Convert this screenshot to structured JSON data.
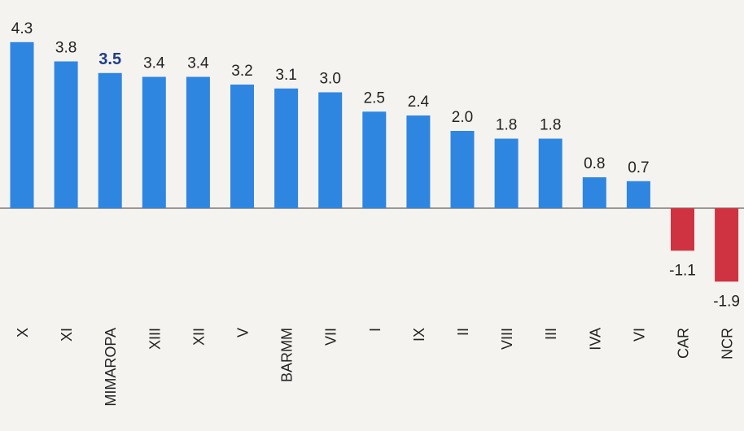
{
  "chart_data": {
    "type": "bar",
    "title": "",
    "xlabel": "",
    "ylabel": "",
    "categories": [
      "X",
      "XI",
      "MIMAROPA",
      "XIII",
      "XII",
      "V",
      "BARMM",
      "VII",
      "I",
      "IX",
      "II",
      "VIII",
      "III",
      "IVA",
      "VI",
      "CAR",
      "NCR"
    ],
    "values": [
      4.3,
      3.8,
      3.5,
      3.4,
      3.4,
      3.2,
      3.1,
      3.0,
      2.5,
      2.4,
      2.0,
      1.8,
      1.8,
      0.8,
      0.7,
      -1.1,
      -1.9
    ],
    "value_labels": [
      "4.3",
      "3.8",
      "3.5",
      "3.4",
      "3.4",
      "3.2",
      "3.1",
      "3.0",
      "2.5",
      "2.4",
      "2.0",
      "1.8",
      "1.8",
      "0.8",
      "0.7",
      "-1.1",
      "-1.9"
    ],
    "highlight_category": "MIMAROPA",
    "ylim": [
      -1.9,
      4.3
    ],
    "grid": false,
    "legend": "none",
    "colors": {
      "positive": "#2f86e0",
      "negative": "#cf3341",
      "highlight_label": "#1f3c88",
      "label": "#222222",
      "axis": "#7a7a7a"
    }
  }
}
